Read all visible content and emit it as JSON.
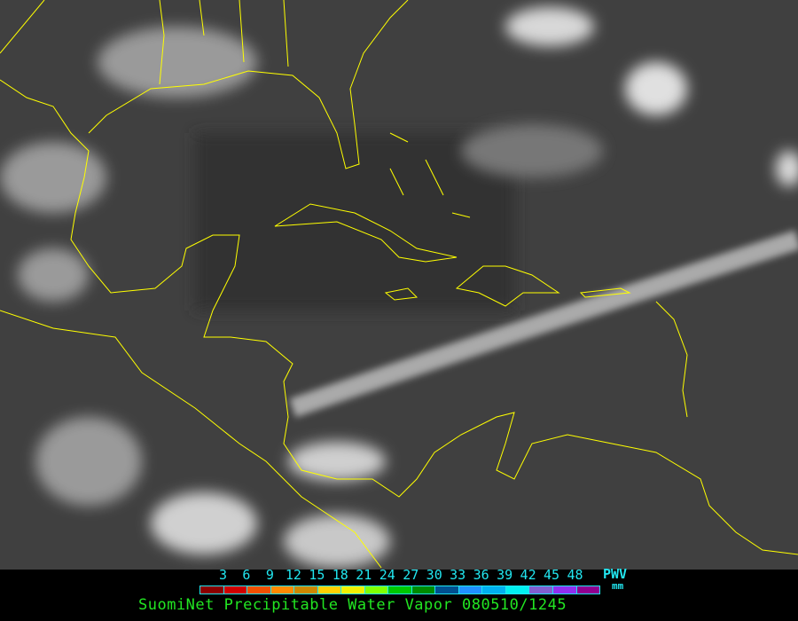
{
  "legend": {
    "ticks": [
      "3",
      "6",
      "9",
      "12",
      "15",
      "18",
      "21",
      "24",
      "27",
      "30",
      "33",
      "36",
      "39",
      "42",
      "45",
      "48"
    ],
    "colors": [
      "#8b0000",
      "#d00000",
      "#f05000",
      "#ff8a00",
      "#cc8800",
      "#ffd000",
      "#f0f000",
      "#80ff00",
      "#00c800",
      "#008c00",
      "#005090",
      "#2090ff",
      "#00b0f0",
      "#00f0f0",
      "#8060d0",
      "#9030f0",
      "#900090"
    ],
    "variable": "PWV",
    "unit": "mm"
  },
  "title": "SuomiNet Precipitable Water Vapor 080510/1245",
  "colors": {
    "coastline": "#ffff00",
    "label": "#22e6f0",
    "title": "#22e622"
  }
}
